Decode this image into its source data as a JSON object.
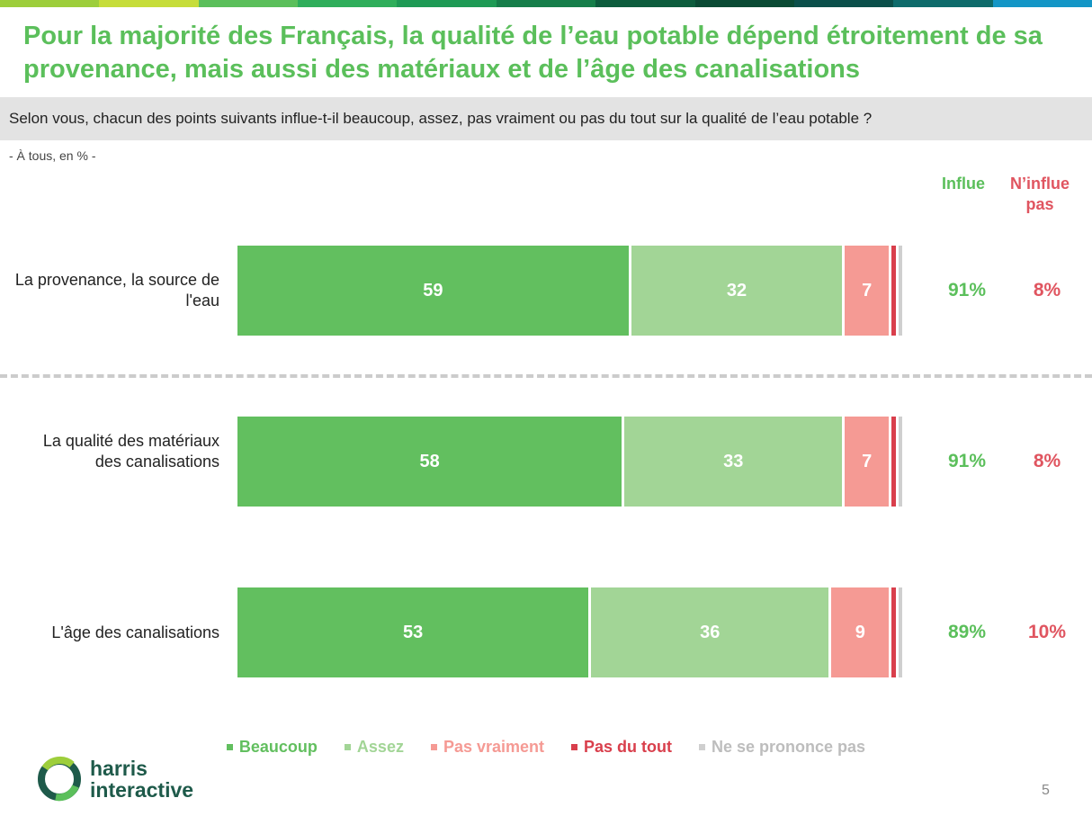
{
  "header": {
    "stripe_colors": [
      "#9dce3b",
      "#c6dd3a",
      "#5bbf5b",
      "#2fae5b",
      "#1e9a55",
      "#167e4a",
      "#0d5c3d",
      "#0a4a34",
      "#0b4f4a",
      "#0e6b6b",
      "#1496c6"
    ],
    "title": "Pour la majorité des Français, la qualité de l’eau potable dépend étroitement de sa provenance, mais aussi des matériaux et de l’âge des canalisations",
    "question": "Selon vous, chacun des points suivants influe-t-il beaucoup, assez, pas vraiment ou pas du tout sur la qualité de l’eau potable ?",
    "base": "- À tous, en % -"
  },
  "columns": {
    "influe": "Influe",
    "ninflue": "N’influe pas"
  },
  "chart_data": {
    "type": "bar",
    "orientation": "horizontal",
    "stacked": true,
    "categories": [
      "La provenance, la source de l'eau",
      "La qualité des matériaux des canalisations",
      "L'âge des canalisations"
    ],
    "series": [
      {
        "name": "Beaucoup",
        "color": "#62bf5f",
        "values": [
          59,
          58,
          53
        ]
      },
      {
        "name": "Assez",
        "color": "#a2d596",
        "values": [
          32,
          33,
          36
        ]
      },
      {
        "name": "Pas vraiment",
        "color": "#f59a94",
        "values": [
          7,
          7,
          9
        ]
      },
      {
        "name": "Pas du tout",
        "color": "#d93f4c",
        "values": [
          1,
          1,
          1
        ]
      },
      {
        "name": "Ne se prononce pas",
        "color": "#cfcfcf",
        "values": [
          1,
          1,
          1
        ]
      }
    ],
    "data_labels": [
      [
        "59",
        "32",
        "7",
        "",
        ""
      ],
      [
        "58",
        "33",
        "7",
        "",
        ""
      ],
      [
        "53",
        "36",
        "9",
        "",
        ""
      ]
    ],
    "influe": [
      "91%",
      "91%",
      "89%"
    ],
    "ninflue": [
      "8%",
      "8%",
      "10%"
    ],
    "xlim": [
      0,
      100
    ],
    "grid": false,
    "legend": "bottom"
  },
  "footer": {
    "logo_line1": "harris",
    "logo_line2": "interactive",
    "page_number": "5"
  }
}
